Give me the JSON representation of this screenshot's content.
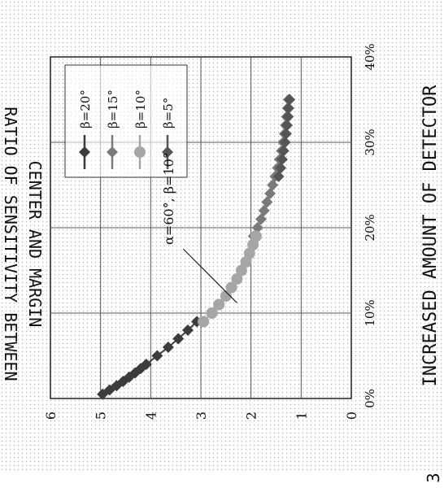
{
  "chart_data": {
    "type": "scatter",
    "title": "",
    "xlabel": "INCREASED AMOUNT OF DETECTOR",
    "ylabel_line1": "RATIO OF SENSITIVITY BETWEEN",
    "ylabel_line2": "CENTER AND MARGIN",
    "x_unit": "%",
    "xlim": [
      0,
      40
    ],
    "ylim": [
      0,
      6
    ],
    "x_ticks": [
      "0%",
      "10%",
      "20%",
      "30%",
      "40%"
    ],
    "y_ticks": [
      "0",
      "1",
      "2",
      "3",
      "4",
      "5",
      "6"
    ],
    "grid": true,
    "legend_placement": "top-right",
    "annotation": "α=60°, β=10°",
    "annotation_target": {
      "x": 11.2,
      "y": 2.28
    },
    "series": [
      {
        "name": "β=20°",
        "marker": "diamond",
        "color": "#3c3c3c",
        "x": [
          0.5,
          1,
          1.5,
          2,
          2.5,
          3,
          3.5,
          4,
          5,
          6,
          7,
          8,
          9
        ],
        "y": [
          4.96,
          4.82,
          4.68,
          4.55,
          4.43,
          4.31,
          4.2,
          4.09,
          3.87,
          3.65,
          3.45,
          3.26,
          3.08
        ]
      },
      {
        "name": "β=15°",
        "marker": "diamond",
        "color": "#7a7a7a",
        "x": [
          19,
          20,
          21,
          22,
          23,
          24,
          25,
          26,
          27,
          28,
          29,
          30,
          31,
          32,
          33,
          34,
          35
        ],
        "y": [
          1.95,
          1.87,
          1.8,
          1.74,
          1.68,
          1.62,
          1.57,
          1.52,
          1.47,
          1.43,
          1.39,
          1.36,
          1.33,
          1.31,
          1.29,
          1.27,
          1.25
        ]
      },
      {
        "name": "β=10°",
        "marker": "circle",
        "color": "#a6a6a6",
        "x": [
          9,
          10,
          11,
          12,
          13,
          14,
          15,
          16,
          17,
          18,
          19
        ],
        "y": [
          2.95,
          2.78,
          2.64,
          2.5,
          2.39,
          2.28,
          2.19,
          2.1,
          2.03,
          1.96,
          1.9
        ]
      },
      {
        "name": "β=5°",
        "marker": "diamond",
        "color": "#555555",
        "x": [
          26,
          27,
          28,
          29,
          30,
          31,
          32,
          33,
          34,
          35
        ],
        "y": [
          1.45,
          1.41,
          1.38,
          1.35,
          1.32,
          1.3,
          1.28,
          1.26,
          1.25,
          1.23
        ]
      }
    ]
  },
  "figure_label": "3"
}
